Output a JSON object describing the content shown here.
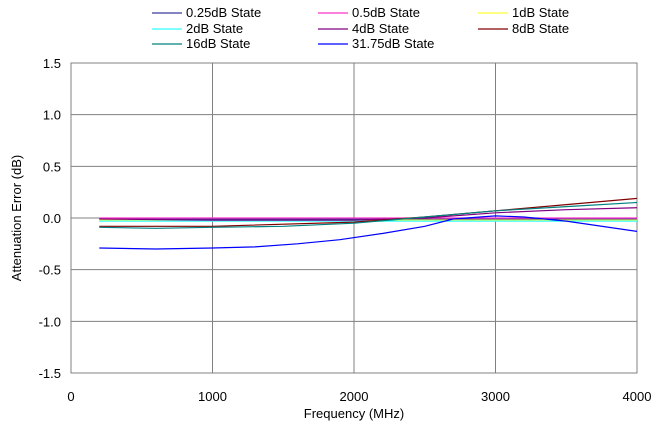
{
  "chart_data": {
    "type": "line",
    "title": "",
    "xlabel": "Frequency (MHz)",
    "ylabel": "Attenuation Error (dB)",
    "xlim": [
      0,
      4000
    ],
    "ylim": [
      -1.5,
      1.5
    ],
    "xticks": [
      0,
      1000,
      2000,
      3000,
      4000
    ],
    "yticks": [
      -1.5,
      -1.0,
      -0.5,
      0.0,
      0.5,
      1.0,
      1.5
    ],
    "xtick_labels": [
      "0",
      "1000",
      "2000",
      "3000",
      "4000"
    ],
    "ytick_labels": [
      "-1.5",
      "-1.0",
      "-0.5",
      "0.0",
      "0.5",
      "1.0",
      "1.5"
    ],
    "grid": true,
    "legend_position": "top",
    "series": [
      {
        "name": "0.25dB State",
        "color": "#3a3a9a",
        "x": [
          200,
          1000,
          2000,
          3000,
          4000
        ],
        "y": [
          -0.01,
          -0.01,
          -0.01,
          -0.01,
          -0.01
        ]
      },
      {
        "name": "0.5dB State",
        "color": "#ff33cc",
        "x": [
          200,
          1000,
          2000,
          3000,
          4000
        ],
        "y": [
          0.0,
          0.0,
          0.0,
          0.0,
          0.0
        ]
      },
      {
        "name": "1dB State",
        "color": "#ffff33",
        "x": [
          200,
          1000,
          2000,
          3000,
          4000
        ],
        "y": [
          -0.02,
          -0.02,
          -0.02,
          -0.02,
          -0.02
        ]
      },
      {
        "name": "2dB State",
        "color": "#33ffff",
        "x": [
          200,
          1000,
          2000,
          3000,
          4000
        ],
        "y": [
          -0.03,
          -0.03,
          -0.03,
          -0.03,
          -0.03
        ]
      },
      {
        "name": "4dB State",
        "color": "#800080",
        "x": [
          200,
          1000,
          2000,
          2500,
          3000,
          3500,
          4000
        ],
        "y": [
          -0.01,
          -0.02,
          -0.02,
          0.0,
          0.05,
          0.08,
          0.1
        ]
      },
      {
        "name": "8dB State",
        "color": "#800000",
        "x": [
          200,
          1000,
          2000,
          2500,
          3000,
          3500,
          4000
        ],
        "y": [
          -0.08,
          -0.08,
          -0.04,
          0.01,
          0.07,
          0.13,
          0.19
        ]
      },
      {
        "name": "16dB State",
        "color": "#008080",
        "x": [
          200,
          600,
          1000,
          1500,
          2000,
          2500,
          3000,
          3500,
          4000
        ],
        "y": [
          -0.09,
          -0.1,
          -0.09,
          -0.08,
          -0.05,
          0.01,
          0.07,
          0.11,
          0.15
        ]
      },
      {
        "name": "31.75dB State",
        "color": "#0000ff",
        "x": [
          200,
          600,
          1000,
          1300,
          1600,
          1900,
          2200,
          2500,
          2700,
          3000,
          3200,
          3500,
          4000
        ],
        "y": [
          -0.29,
          -0.3,
          -0.29,
          -0.28,
          -0.25,
          -0.21,
          -0.15,
          -0.08,
          -0.01,
          0.02,
          0.01,
          -0.03,
          -0.13
        ]
      }
    ]
  }
}
